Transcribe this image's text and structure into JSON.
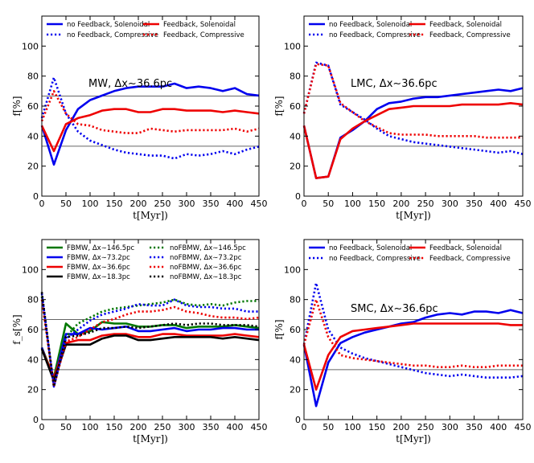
{
  "chart_data": [
    {
      "type": "line",
      "annotation": "MW, Δx∼36.6pc",
      "xlabel": "t[Myr])",
      "ylabel": "f[%]",
      "xlim": [
        0,
        450
      ],
      "ylim": [
        0,
        120
      ],
      "xticks": [
        0,
        50,
        100,
        150,
        200,
        250,
        300,
        350,
        400,
        450
      ],
      "yticks": [
        0,
        20,
        40,
        60,
        80,
        100
      ],
      "reference_lines": [
        66.7,
        33.3
      ],
      "legend_position": "top",
      "series": [
        {
          "name": "no Feedback, Solenoidal",
          "color": "#0000ee",
          "style": "solid",
          "x": [
            0,
            25,
            50,
            75,
            100,
            125,
            150,
            175,
            200,
            225,
            250,
            275,
            300,
            325,
            350,
            375,
            400,
            425,
            450
          ],
          "y": [
            47,
            21,
            44,
            58,
            64,
            67,
            70,
            72,
            73,
            73,
            73,
            75,
            72,
            73,
            72,
            70,
            72,
            68,
            67
          ]
        },
        {
          "name": "no Feedback, Compressive",
          "color": "#0000ee",
          "style": "dotted",
          "x": [
            0,
            25,
            50,
            75,
            100,
            125,
            150,
            175,
            200,
            225,
            250,
            275,
            300,
            325,
            350,
            375,
            400,
            425,
            450
          ],
          "y": [
            52,
            79,
            55,
            43,
            37,
            34,
            31,
            29,
            28,
            27,
            27,
            25,
            28,
            27,
            28,
            30,
            28,
            31,
            33
          ]
        },
        {
          "name": "Feedback, Solenoidal",
          "color": "#ee0000",
          "style": "solid",
          "x": [
            0,
            25,
            50,
            75,
            100,
            125,
            150,
            175,
            200,
            225,
            250,
            275,
            300,
            325,
            350,
            375,
            400,
            425,
            450
          ],
          "y": [
            47,
            30,
            48,
            52,
            54,
            57,
            58,
            58,
            56,
            56,
            58,
            58,
            57,
            57,
            57,
            56,
            57,
            56,
            55
          ]
        },
        {
          "name": "Feedback, Compressive",
          "color": "#ee0000",
          "style": "dotted",
          "x": [
            0,
            25,
            50,
            75,
            100,
            125,
            150,
            175,
            200,
            225,
            250,
            275,
            300,
            325,
            350,
            375,
            400,
            425,
            450
          ],
          "y": [
            50,
            70,
            55,
            48,
            47,
            44,
            43,
            42,
            42,
            45,
            44,
            43,
            44,
            44,
            44,
            44,
            45,
            43,
            45
          ]
        }
      ]
    },
    {
      "type": "line",
      "annotation": "LMC, Δx∼36.6pc",
      "xlabel": "t[Myr])",
      "ylabel": "f[%]",
      "xlim": [
        0,
        450
      ],
      "ylim": [
        0,
        120
      ],
      "xticks": [
        0,
        50,
        100,
        150,
        200,
        250,
        300,
        350,
        400,
        450
      ],
      "yticks": [
        0,
        20,
        40,
        60,
        80,
        100
      ],
      "reference_lines": [
        66.7,
        33.3
      ],
      "legend_position": "top",
      "series": [
        {
          "name": "no Feedback, Solenoidal",
          "color": "#0000ee",
          "style": "solid",
          "x": [
            0,
            25,
            50,
            75,
            100,
            125,
            150,
            175,
            200,
            225,
            250,
            275,
            300,
            325,
            350,
            375,
            400,
            425,
            450
          ],
          "y": [
            47,
            12,
            13,
            39,
            44,
            50,
            58,
            62,
            63,
            65,
            66,
            66,
            67,
            68,
            69,
            70,
            71,
            70,
            72
          ]
        },
        {
          "name": "no Feedback, Compressive",
          "color": "#0000ee",
          "style": "dotted",
          "x": [
            0,
            25,
            50,
            75,
            100,
            125,
            150,
            175,
            200,
            225,
            250,
            275,
            300,
            325,
            350,
            375,
            400,
            425,
            450
          ],
          "y": [
            55,
            89,
            87,
            61,
            56,
            51,
            45,
            40,
            38,
            36,
            35,
            34,
            33,
            32,
            31,
            30,
            29,
            30,
            28
          ]
        },
        {
          "name": "Feedback, Solenoidal",
          "color": "#ee0000",
          "style": "solid",
          "x": [
            0,
            25,
            50,
            75,
            100,
            125,
            150,
            175,
            200,
            225,
            250,
            275,
            300,
            325,
            350,
            375,
            400,
            425,
            450
          ],
          "y": [
            47,
            12,
            13,
            38,
            45,
            50,
            54,
            58,
            59,
            60,
            60,
            60,
            60,
            61,
            61,
            61,
            61,
            62,
            61
          ]
        },
        {
          "name": "Feedback, Compressive",
          "color": "#ee0000",
          "style": "dotted",
          "x": [
            0,
            25,
            50,
            75,
            100,
            125,
            150,
            175,
            200,
            225,
            250,
            275,
            300,
            325,
            350,
            375,
            400,
            425,
            450
          ],
          "y": [
            55,
            88,
            87,
            62,
            56,
            50,
            46,
            42,
            41,
            41,
            41,
            40,
            40,
            40,
            40,
            39,
            39,
            39,
            39
          ]
        }
      ]
    },
    {
      "type": "line",
      "xlabel": "t[Myr])",
      "ylabel": "f_s[%]",
      "xlim": [
        0,
        450
      ],
      "ylim": [
        0,
        120
      ],
      "xticks": [
        0,
        50,
        100,
        150,
        200,
        250,
        300,
        350,
        400,
        450
      ],
      "yticks": [
        0,
        20,
        40,
        60,
        80,
        100
      ],
      "reference_lines": [
        66.7,
        33.3
      ],
      "legend_position": "top",
      "series": [
        {
          "name": "FBMW, Δx∼146.5pc",
          "color": "#007700",
          "style": "solid",
          "x": [
            0,
            25,
            50,
            75,
            100,
            125,
            150,
            175,
            200,
            225,
            250,
            275,
            300,
            325,
            350,
            375,
            400,
            425,
            450
          ],
          "y": [
            48,
            28,
            64,
            57,
            59,
            65,
            64,
            64,
            62,
            62,
            63,
            63,
            61,
            62,
            62,
            62,
            63,
            62,
            61
          ]
        },
        {
          "name": "FBMW, Δx∼73.2pc",
          "color": "#0000ee",
          "style": "solid",
          "x": [
            0,
            25,
            50,
            75,
            100,
            125,
            150,
            175,
            200,
            225,
            250,
            275,
            300,
            325,
            350,
            375,
            400,
            425,
            450
          ],
          "y": [
            48,
            26,
            57,
            57,
            61,
            60,
            61,
            62,
            59,
            59,
            60,
            61,
            59,
            60,
            60,
            61,
            61,
            60,
            60
          ]
        },
        {
          "name": "FBMW, Δx∼36.6pc",
          "color": "#ee0000",
          "style": "solid",
          "x": [
            0,
            25,
            50,
            75,
            100,
            125,
            150,
            175,
            200,
            225,
            250,
            275,
            300,
            325,
            350,
            375,
            400,
            425,
            450
          ],
          "y": [
            47,
            28,
            51,
            53,
            53,
            56,
            57,
            57,
            55,
            55,
            57,
            57,
            56,
            56,
            56,
            56,
            57,
            56,
            55
          ]
        },
        {
          "name": "FBMW, Δx∼18.3pc",
          "color": "#000000",
          "style": "solid",
          "x": [
            0,
            25,
            50,
            75,
            100,
            125,
            150,
            175,
            200,
            225,
            250,
            275,
            300,
            325,
            350,
            375,
            400,
            425,
            450
          ],
          "y": [
            47,
            26,
            50,
            50,
            50,
            54,
            56,
            56,
            53,
            53,
            54,
            55,
            55,
            55,
            55,
            54,
            55,
            54,
            53
          ]
        },
        {
          "name": "noFBMW, Δx∼146.5pc",
          "color": "#007700",
          "style": "dotted",
          "x": [
            0,
            25,
            50,
            75,
            100,
            125,
            150,
            175,
            200,
            225,
            250,
            275,
            300,
            325,
            350,
            375,
            400,
            425,
            450
          ],
          "y": [
            82,
            22,
            55,
            64,
            68,
            72,
            74,
            75,
            76,
            77,
            78,
            80,
            77,
            76,
            77,
            76,
            78,
            79,
            79
          ]
        },
        {
          "name": "noFBMW, Δx∼73.2pc",
          "color": "#0000ee",
          "style": "dotted",
          "x": [
            0,
            25,
            50,
            75,
            100,
            125,
            150,
            175,
            200,
            225,
            250,
            275,
            300,
            325,
            350,
            375,
            400,
            425,
            450
          ],
          "y": [
            84,
            22,
            54,
            60,
            66,
            70,
            72,
            74,
            77,
            76,
            76,
            80,
            76,
            75,
            75,
            74,
            74,
            72,
            72
          ]
        },
        {
          "name": "noFBMW, Δx∼36.6pc",
          "color": "#ee0000",
          "style": "dotted",
          "x": [
            0,
            25,
            50,
            75,
            100,
            125,
            150,
            175,
            200,
            225,
            250,
            275,
            300,
            325,
            350,
            375,
            400,
            425,
            450
          ],
          "y": [
            80,
            22,
            52,
            55,
            60,
            65,
            67,
            70,
            72,
            72,
            73,
            75,
            72,
            71,
            69,
            68,
            68,
            67,
            68
          ]
        },
        {
          "name": "noFBMW, Δx∼18.3pc",
          "color": "#000000",
          "style": "dotted",
          "x": [
            0,
            25,
            50,
            75,
            100,
            125,
            150,
            175,
            200,
            225,
            250,
            275,
            300,
            325,
            350,
            375,
            400,
            425,
            450
          ],
          "y": [
            85,
            22,
            55,
            56,
            58,
            61,
            61,
            62,
            61,
            62,
            63,
            64,
            63,
            64,
            64,
            63,
            63,
            63,
            62
          ]
        }
      ]
    },
    {
      "type": "line",
      "annotation": "SMC, Δx∼36.6pc",
      "xlabel": "t[Myr])",
      "ylabel": "f[%]",
      "xlim": [
        0,
        450
      ],
      "ylim": [
        0,
        120
      ],
      "xticks": [
        0,
        50,
        100,
        150,
        200,
        250,
        300,
        350,
        400,
        450
      ],
      "yticks": [
        0,
        20,
        40,
        60,
        80,
        100
      ],
      "reference_lines": [
        66.7,
        33.3
      ],
      "legend_position": "top",
      "series": [
        {
          "name": "no Feedback, Solenoidal",
          "color": "#0000ee",
          "style": "solid",
          "x": [
            0,
            25,
            50,
            75,
            100,
            125,
            150,
            175,
            200,
            225,
            250,
            275,
            300,
            325,
            350,
            375,
            400,
            425,
            450
          ],
          "y": [
            50,
            9,
            38,
            51,
            55,
            58,
            60,
            62,
            64,
            65,
            68,
            70,
            71,
            70,
            72,
            72,
            71,
            73,
            71
          ]
        },
        {
          "name": "no Feedback, Compressive",
          "color": "#0000ee",
          "style": "dotted",
          "x": [
            0,
            25,
            50,
            75,
            100,
            125,
            150,
            175,
            200,
            225,
            250,
            275,
            300,
            325,
            350,
            375,
            400,
            425,
            450
          ],
          "y": [
            50,
            91,
            60,
            48,
            44,
            41,
            39,
            37,
            35,
            33,
            31,
            30,
            29,
            30,
            29,
            28,
            28,
            28,
            29
          ]
        },
        {
          "name": "Feedback, Solenoidal",
          "color": "#ee0000",
          "style": "solid",
          "x": [
            0,
            25,
            50,
            75,
            100,
            125,
            150,
            175,
            200,
            225,
            250,
            275,
            300,
            325,
            350,
            375,
            400,
            425,
            450
          ],
          "y": [
            50,
            20,
            43,
            55,
            59,
            60,
            61,
            62,
            63,
            64,
            64,
            64,
            64,
            64,
            64,
            64,
            64,
            63,
            63
          ]
        },
        {
          "name": "Feedback, Compressive",
          "color": "#ee0000",
          "style": "dotted",
          "x": [
            0,
            25,
            50,
            75,
            100,
            125,
            150,
            175,
            200,
            225,
            250,
            275,
            300,
            325,
            350,
            375,
            400,
            425,
            450
          ],
          "y": [
            50,
            80,
            55,
            43,
            41,
            40,
            39,
            38,
            37,
            36,
            36,
            35,
            35,
            36,
            35,
            35,
            36,
            36,
            36
          ]
        }
      ]
    }
  ]
}
